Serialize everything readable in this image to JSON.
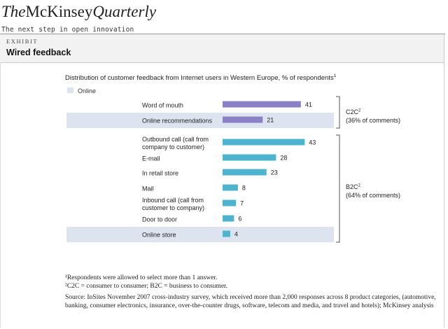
{
  "header": {
    "logo_the": "The",
    "logo_mckinsey": "McKinsey",
    "logo_quarterly": "Quarterly",
    "article_title": "The next step in open innovation"
  },
  "exhibit": {
    "label": "EXHIBIT",
    "title": "Wired feedback"
  },
  "chart_data": {
    "type": "bar",
    "orientation": "horizontal",
    "title": "Distribution of customer feedback from Internet users in Western Europe, % of respondents",
    "title_footnote_marker": "1",
    "legend": [
      {
        "label": "Online",
        "color": "#dde3ef"
      }
    ],
    "categories": [
      "Word of mouth",
      "Online recommendations",
      "Outbound call (call from company to customer)",
      "E-mail",
      "In retail store",
      "Mail",
      "Inbound call (call from customer to company)",
      "Door to door",
      "Online store"
    ],
    "category_lines": [
      [
        "Word of mouth"
      ],
      [
        "Online recommendations"
      ],
      [
        "Outbound call (call from",
        "company to customer)"
      ],
      [
        "E-mail"
      ],
      [
        "In retail store"
      ],
      [
        "Mail"
      ],
      [
        "Inbound call (call from",
        "customer to company)"
      ],
      [
        "Door to door"
      ],
      [
        "Online store"
      ]
    ],
    "values": [
      41,
      21,
      43,
      28,
      23,
      8,
      7,
      6,
      4
    ],
    "online": [
      false,
      true,
      false,
      false,
      false,
      false,
      false,
      false,
      true
    ],
    "groups": [
      {
        "label": "C2C",
        "footnote_marker": "2",
        "share": "(36% of comments)",
        "color": "#8a80c4",
        "categories": [
          "Word of mouth",
          "Online recommendations"
        ]
      },
      {
        "label": "B2C",
        "footnote_marker": "2",
        "share": "(64% of comments)",
        "color": "#4db3cf",
        "categories": [
          "Outbound call (call from company to customer)",
          "E-mail",
          "In retail store",
          "Mail",
          "Inbound call (call from customer to company)",
          "Door to door",
          "Online store"
        ]
      }
    ],
    "xlim": [
      0,
      45
    ],
    "grid": false,
    "xlabel": "",
    "ylabel": ""
  },
  "footnotes": {
    "note1": "¹Respondents were allowed to select more than 1 answer.",
    "note2": "²C2C = consumer to consumer; B2C = business to consumer.",
    "source": "Source: InSites November 2007 cross-industry survey, which received more than 2,000 responses across 8 product categories, (automotive, banking, consumer electronics, insurance, over-the-counter drugs, software, telecom and media, and travel and hotels); McKinsey analysis"
  }
}
